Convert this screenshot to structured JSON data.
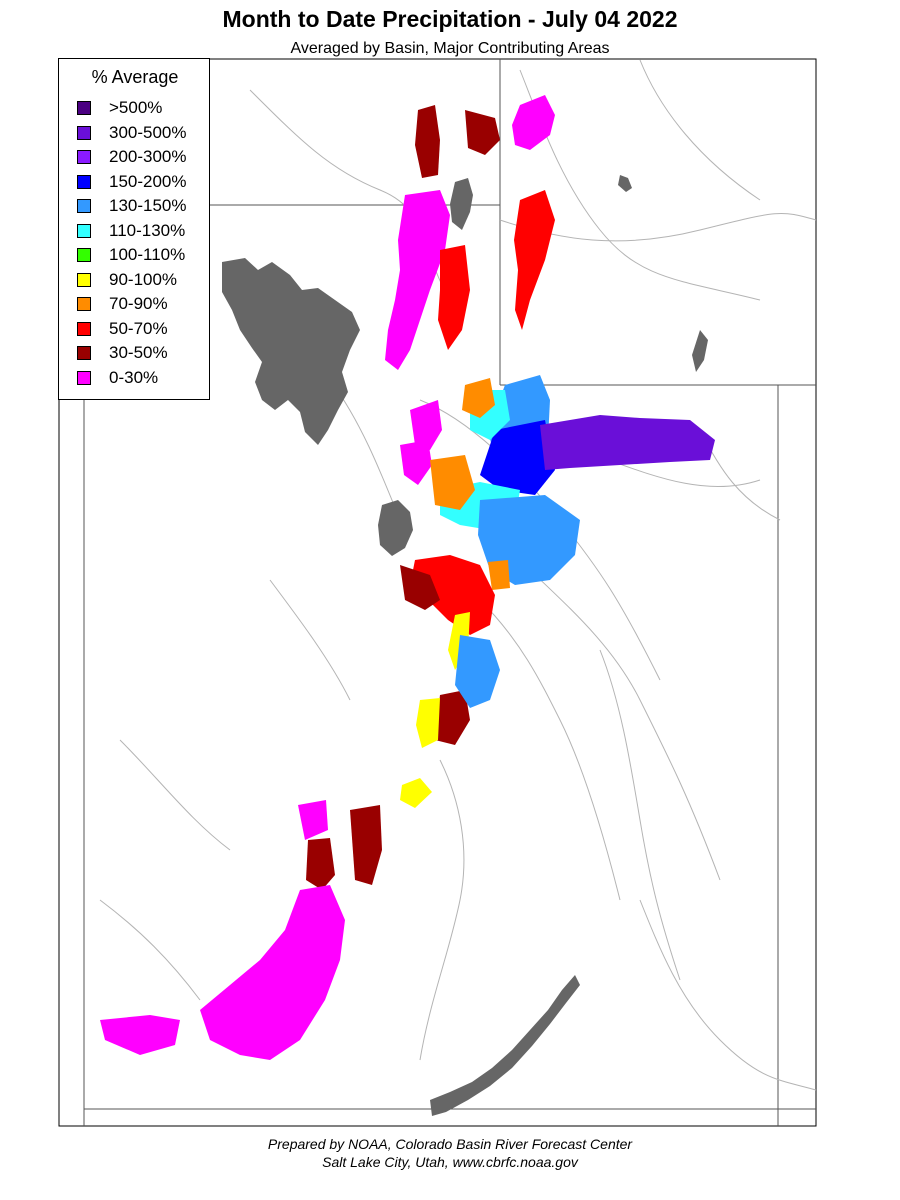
{
  "header": {
    "title": "Month to Date Precipitation - July 04 2022",
    "subtitle": "Averaged by Basin, Major Contributing Areas"
  },
  "legend": {
    "title": "% Average",
    "items": [
      {
        "label": ">500%",
        "color": "#4b0082"
      },
      {
        "label": "300-500%",
        "color": "#6a0fd8"
      },
      {
        "label": "200-300%",
        "color": "#8a1aff"
      },
      {
        "label": "150-200%",
        "color": "#0000ff"
      },
      {
        "label": "130-150%",
        "color": "#3399ff"
      },
      {
        "label": "110-130%",
        "color": "#33ffff"
      },
      {
        "label": "100-110%",
        "color": "#33ff00"
      },
      {
        "label": "90-100%",
        "color": "#ffff00"
      },
      {
        "label": "70-90%",
        "color": "#ff8c00"
      },
      {
        "label": "50-70%",
        "color": "#ff0000"
      },
      {
        "label": "30-50%",
        "color": "#990000"
      },
      {
        "label": "0-30%",
        "color": "#ff00ff"
      }
    ]
  },
  "map": {
    "water_color": "#666666",
    "boundary_color": "#000000",
    "river_color": "#b4b4b4"
  },
  "footer": {
    "line1": "Prepared by NOAA, Colorado Basin River Forecast Center",
    "line2": "Salt Lake City, Utah, www.cbrfc.noaa.gov"
  }
}
